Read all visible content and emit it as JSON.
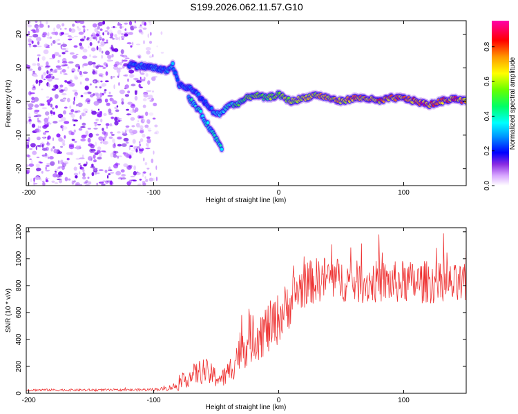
{
  "chart_data": [
    {
      "type": "heatmap",
      "title": "S199.2026.062.11.57.G10",
      "xlabel": "Height of straight line (km)",
      "ylabel": "Frequency (Hz)",
      "xlim": [
        -202,
        150
      ],
      "ylim": [
        -25,
        24
      ],
      "x_ticks": [
        -200,
        -100,
        0,
        100
      ],
      "y_ticks": [
        20,
        10,
        0,
        -10,
        -20
      ],
      "colorbar": {
        "label": "Normalized spectral amplitude",
        "range": [
          0,
          0.95
        ],
        "ticks": [
          0.0,
          0.2,
          0.4,
          0.6,
          0.8
        ],
        "colors": [
          "#ffffff",
          "#cc66ff",
          "#6600ff",
          "#0000ff",
          "#00ffff",
          "#00ff00",
          "#ffff00",
          "#ff8800",
          "#ff0000",
          "#ff00aa"
        ]
      },
      "noise_region_x": [
        -202,
        -92
      ],
      "ridge": {
        "x": [
          -120,
          -100,
          -90,
          -85,
          -80,
          -75,
          -70,
          -65,
          -60,
          -55,
          -50,
          -45,
          -40,
          -35,
          -30,
          -20,
          -10,
          0,
          10,
          20,
          30,
          40,
          50,
          60,
          70,
          80,
          90,
          100,
          110,
          120,
          130,
          140,
          150
        ],
        "freq": [
          11,
          10,
          9,
          11,
          5,
          4,
          4,
          2,
          0,
          -2,
          -4,
          -3,
          -1,
          -1,
          0,
          2,
          1,
          2,
          0,
          1,
          2,
          1,
          0,
          1,
          1,
          0,
          1,
          1,
          0,
          -1,
          0,
          1,
          0
        ],
        "amplitude": [
          0.3,
          0.3,
          0.3,
          0.35,
          0.3,
          0.3,
          0.3,
          0.3,
          0.25,
          0.3,
          0.4,
          0.4,
          0.45,
          0.5,
          0.55,
          0.6,
          0.6,
          0.65,
          0.7,
          0.7,
          0.75,
          0.75,
          0.8,
          0.8,
          0.8,
          0.85,
          0.85,
          0.85,
          0.9,
          0.9,
          0.9,
          0.9,
          0.85
        ]
      },
      "side_branch": {
        "x": [
          -72,
          -65,
          -60,
          -55,
          -50,
          -45
        ],
        "freq": [
          1,
          -2,
          -5,
          -8,
          -11,
          -14
        ]
      }
    },
    {
      "type": "line",
      "xlabel": "Height of straight line (km)",
      "ylabel": "SNR (10 * v/v)",
      "xlim": [
        -202,
        150
      ],
      "ylim": [
        0,
        1230
      ],
      "x_ticks": [
        -200,
        -100,
        0,
        100
      ],
      "y_ticks": [
        0,
        200,
        400,
        600,
        800,
        1000,
        1200
      ],
      "series": [
        {
          "name": "SNR",
          "color": "#ee3333",
          "x": [
            -202,
            -180,
            -160,
            -140,
            -120,
            -100,
            -90,
            -80,
            -75,
            -70,
            -65,
            -60,
            -55,
            -50,
            -45,
            -40,
            -35,
            -30,
            -25,
            -20,
            -15,
            -10,
            -5,
            0,
            5,
            10,
            15,
            20,
            25,
            30,
            35,
            40,
            50,
            60,
            70,
            80,
            90,
            100,
            110,
            120,
            130,
            140,
            150
          ],
          "y": [
            25,
            25,
            25,
            25,
            25,
            28,
            35,
            60,
            100,
            130,
            150,
            170,
            140,
            120,
            110,
            150,
            250,
            330,
            380,
            420,
            450,
            470,
            500,
            560,
            620,
            680,
            760,
            800,
            820,
            840,
            850,
            860,
            840,
            830,
            820,
            830,
            820,
            830,
            820,
            830,
            810,
            800,
            800
          ],
          "noise_amplitude": [
            8,
            8,
            8,
            8,
            8,
            10,
            15,
            40,
            60,
            80,
            90,
            100,
            90,
            80,
            70,
            100,
            140,
            170,
            180,
            190,
            200,
            200,
            200,
            190,
            190,
            180,
            180,
            170,
            170,
            170,
            170,
            170,
            160,
            160,
            160,
            160,
            160,
            160,
            160,
            160,
            160,
            160,
            160
          ]
        }
      ]
    }
  ]
}
